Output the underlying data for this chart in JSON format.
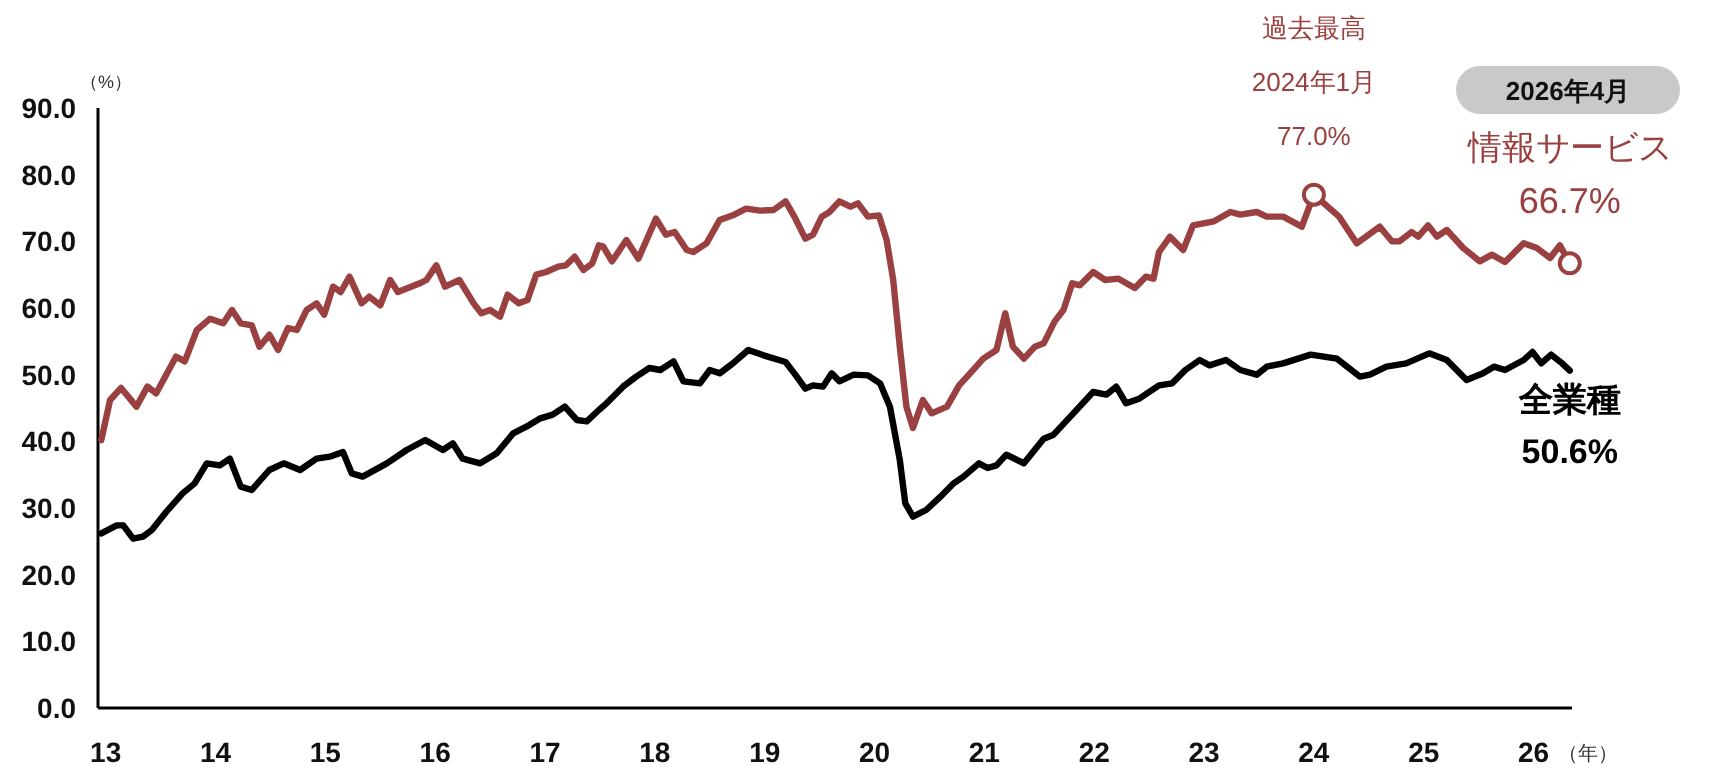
{
  "chart_data": {
    "type": "line",
    "ylabel": "（%）",
    "xlabel": "（年）",
    "xlim": [
      12.93,
      26.35
    ],
    "ylim": [
      0,
      90
    ],
    "xticks": [
      13,
      14,
      15,
      16,
      17,
      18,
      19,
      20,
      21,
      22,
      23,
      24,
      25,
      26
    ],
    "yticks": [
      {
        "value": 0,
        "label": "0.0"
      },
      {
        "value": 10,
        "label": "10.0"
      },
      {
        "value": 20,
        "label": "20.0"
      },
      {
        "value": 30,
        "label": "30.0"
      },
      {
        "value": 40,
        "label": "40.0"
      },
      {
        "value": 50,
        "label": "50.0"
      },
      {
        "value": 60,
        "label": "60.0"
      },
      {
        "value": 70,
        "label": "70.0"
      },
      {
        "value": 80,
        "label": "80.0"
      },
      {
        "value": 90,
        "label": "90.0"
      }
    ],
    "grid": false,
    "line_style": "solid",
    "series": [
      {
        "name": "情報サービス",
        "color": "#9b4040",
        "x": [
          12.96,
          13.04,
          13.14,
          13.28,
          13.38,
          13.46,
          13.64,
          13.72,
          13.83,
          13.95,
          14.07,
          14.15,
          14.23,
          14.33,
          14.4,
          14.49,
          14.57,
          14.66,
          14.74,
          14.83,
          14.92,
          14.99,
          15.07,
          15.14,
          15.22,
          15.33,
          15.4,
          15.5,
          15.59,
          15.66,
          15.86,
          15.92,
          16.01,
          16.09,
          16.22,
          16.35,
          16.42,
          16.5,
          16.59,
          16.66,
          16.76,
          16.84,
          16.92,
          17.01,
          17.12,
          17.19,
          17.27,
          17.35,
          17.43,
          17.49,
          17.53,
          17.61,
          17.74,
          17.85,
          18.01,
          18.1,
          18.18,
          18.29,
          18.35,
          18.47,
          18.59,
          18.71,
          18.83,
          18.96,
          19.08,
          19.19,
          19.27,
          19.37,
          19.44,
          19.52,
          19.59,
          19.68,
          19.78,
          19.85,
          19.94,
          20.04,
          20.11,
          20.17,
          20.23,
          20.29,
          20.35,
          20.44,
          20.52,
          20.66,
          20.77,
          20.87,
          20.99,
          21.11,
          21.19,
          21.26,
          21.36,
          21.46,
          21.54,
          21.64,
          21.72,
          21.8,
          21.87,
          21.99,
          22.1,
          22.22,
          22.37,
          22.47,
          22.54,
          22.59,
          22.69,
          22.81,
          22.9,
          23.09,
          23.24,
          23.33,
          23.48,
          23.57,
          23.72,
          23.89,
          24.0,
          24.23,
          24.39,
          24.6,
          24.71,
          24.78,
          24.89,
          24.95,
          25.04,
          25.12,
          25.21,
          25.36,
          25.51,
          25.62,
          25.74,
          25.91,
          26.03,
          26.15,
          26.24,
          26.33
        ],
        "values": [
          40.2,
          46.2,
          48.0,
          45.2,
          48.2,
          47.2,
          52.7,
          52.0,
          56.7,
          58.4,
          57.7,
          59.7,
          57.7,
          57.4,
          54.2,
          56.0,
          53.7,
          57.0,
          56.7,
          59.7,
          60.7,
          59.0,
          63.2,
          62.4,
          64.7,
          60.7,
          61.7,
          60.4,
          64.2,
          62.4,
          63.7,
          64.2,
          66.4,
          63.2,
          64.2,
          60.7,
          59.2,
          59.7,
          58.7,
          62.0,
          60.7,
          61.2,
          65.0,
          65.4,
          66.2,
          66.4,
          67.7,
          65.7,
          66.7,
          69.4,
          69.2,
          67.0,
          70.2,
          67.4,
          73.4,
          71.0,
          71.4,
          68.7,
          68.4,
          69.7,
          73.2,
          73.9,
          74.9,
          74.6,
          74.7,
          76.0,
          73.7,
          70.4,
          71.0,
          73.7,
          74.4,
          76.0,
          75.2,
          75.7,
          73.7,
          73.9,
          70.2,
          64.2,
          54.2,
          45.2,
          42.0,
          46.2,
          44.2,
          45.2,
          48.4,
          50.2,
          52.4,
          53.7,
          59.2,
          54.2,
          52.4,
          54.2,
          54.7,
          58.0,
          59.7,
          63.7,
          63.4,
          65.4,
          64.2,
          64.4,
          63.0,
          64.7,
          64.4,
          68.4,
          70.7,
          68.7,
          72.4,
          73.0,
          74.4,
          74.0,
          74.4,
          73.7,
          73.7,
          72.2,
          77.0,
          73.7,
          69.7,
          72.2,
          70.0,
          70.0,
          71.4,
          70.7,
          72.4,
          70.7,
          71.7,
          69.0,
          67.0,
          68.0,
          66.9,
          69.7,
          69.0,
          67.5,
          69.4,
          66.7
        ]
      },
      {
        "name": "全業種",
        "color": "#000000",
        "x": [
          12.96,
          13.1,
          13.16,
          13.25,
          13.34,
          13.42,
          13.55,
          13.7,
          13.81,
          13.92,
          14.04,
          14.13,
          14.23,
          14.33,
          14.49,
          14.62,
          14.77,
          14.92,
          15.04,
          15.16,
          15.24,
          15.34,
          15.56,
          15.74,
          15.91,
          16.07,
          16.16,
          16.25,
          16.41,
          16.56,
          16.71,
          16.83,
          16.95,
          17.07,
          17.18,
          17.29,
          17.38,
          17.49,
          17.56,
          17.71,
          17.83,
          17.95,
          18.05,
          18.17,
          18.26,
          18.41,
          18.5,
          18.59,
          18.71,
          18.85,
          18.99,
          19.19,
          19.27,
          19.37,
          19.44,
          19.53,
          19.61,
          19.68,
          19.81,
          19.94,
          20.05,
          20.14,
          20.23,
          20.28,
          20.35,
          20.47,
          20.6,
          20.72,
          20.81,
          20.95,
          21.03,
          21.11,
          21.2,
          21.36,
          21.54,
          21.63,
          21.81,
          21.99,
          22.11,
          22.2,
          22.29,
          22.41,
          22.59,
          22.71,
          22.83,
          22.96,
          23.05,
          23.2,
          23.33,
          23.48,
          23.57,
          23.72,
          23.97,
          24.21,
          24.42,
          24.51,
          24.66,
          24.84,
          25.05,
          25.21,
          25.39,
          25.54,
          25.64,
          25.74,
          25.91,
          25.99,
          26.07,
          26.16,
          26.26,
          26.33
        ],
        "values": [
          26.2,
          27.4,
          27.4,
          25.4,
          25.7,
          26.7,
          29.4,
          32.2,
          33.7,
          36.7,
          36.4,
          37.4,
          33.2,
          32.7,
          35.7,
          36.7,
          35.7,
          37.4,
          37.7,
          38.4,
          35.2,
          34.7,
          36.7,
          38.7,
          40.2,
          38.7,
          39.7,
          37.4,
          36.7,
          38.2,
          41.2,
          42.2,
          43.4,
          44.0,
          45.2,
          43.2,
          43.0,
          44.7,
          45.7,
          48.2,
          49.7,
          51.0,
          50.7,
          52.0,
          49.0,
          48.7,
          50.7,
          50.2,
          51.7,
          53.7,
          52.9,
          51.9,
          50.2,
          47.9,
          48.4,
          48.2,
          50.2,
          49.0,
          50.0,
          49.9,
          48.7,
          45.2,
          37.2,
          30.7,
          28.7,
          29.7,
          31.7,
          33.7,
          34.7,
          36.7,
          36.0,
          36.4,
          38.0,
          36.7,
          40.4,
          41.0,
          44.2,
          47.4,
          47.0,
          48.2,
          45.7,
          46.4,
          48.4,
          48.7,
          50.7,
          52.2,
          51.4,
          52.2,
          50.7,
          50.0,
          51.2,
          51.7,
          53.0,
          52.4,
          49.7,
          50.0,
          51.2,
          51.7,
          53.2,
          52.2,
          49.2,
          50.2,
          51.2,
          50.7,
          52.2,
          53.4,
          51.7,
          53.0,
          51.7,
          50.6
        ],
        "value_labels": [
          null,
          null,
          null,
          null,
          null,
          null,
          null,
          null,
          null,
          null,
          null,
          null,
          null,
          null,
          null,
          null,
          null,
          null,
          null,
          null,
          null,
          null,
          null,
          null,
          null,
          null,
          null,
          null,
          null,
          null,
          null,
          null,
          null,
          null,
          null,
          null,
          null,
          null,
          null,
          null,
          null,
          null,
          null,
          null,
          null,
          null,
          null,
          null,
          null,
          null,
          null,
          null,
          null,
          null,
          null,
          null,
          null,
          null,
          null,
          null,
          null,
          null,
          null,
          null,
          null,
          null,
          null,
          null,
          null,
          null,
          null,
          null,
          null,
          null,
          null,
          null,
          null,
          null,
          null,
          null,
          null,
          null,
          null,
          null,
          null,
          null,
          null,
          null,
          null,
          null,
          null,
          null,
          null,
          null,
          null,
          null,
          null,
          null,
          null,
          null,
          null,
          null,
          null,
          null,
          null,
          null,
          null,
          null,
          null,
          "50.6%"
        ]
      }
    ],
    "annotations": [
      {
        "text": "過去最高\n2024年1月\n77.0%",
        "x": 24.0,
        "y": 77.0
      },
      {
        "text": "66.7%",
        "x": 26.33,
        "y": 66.7
      },
      "2026年4月"
    ]
  }
}
